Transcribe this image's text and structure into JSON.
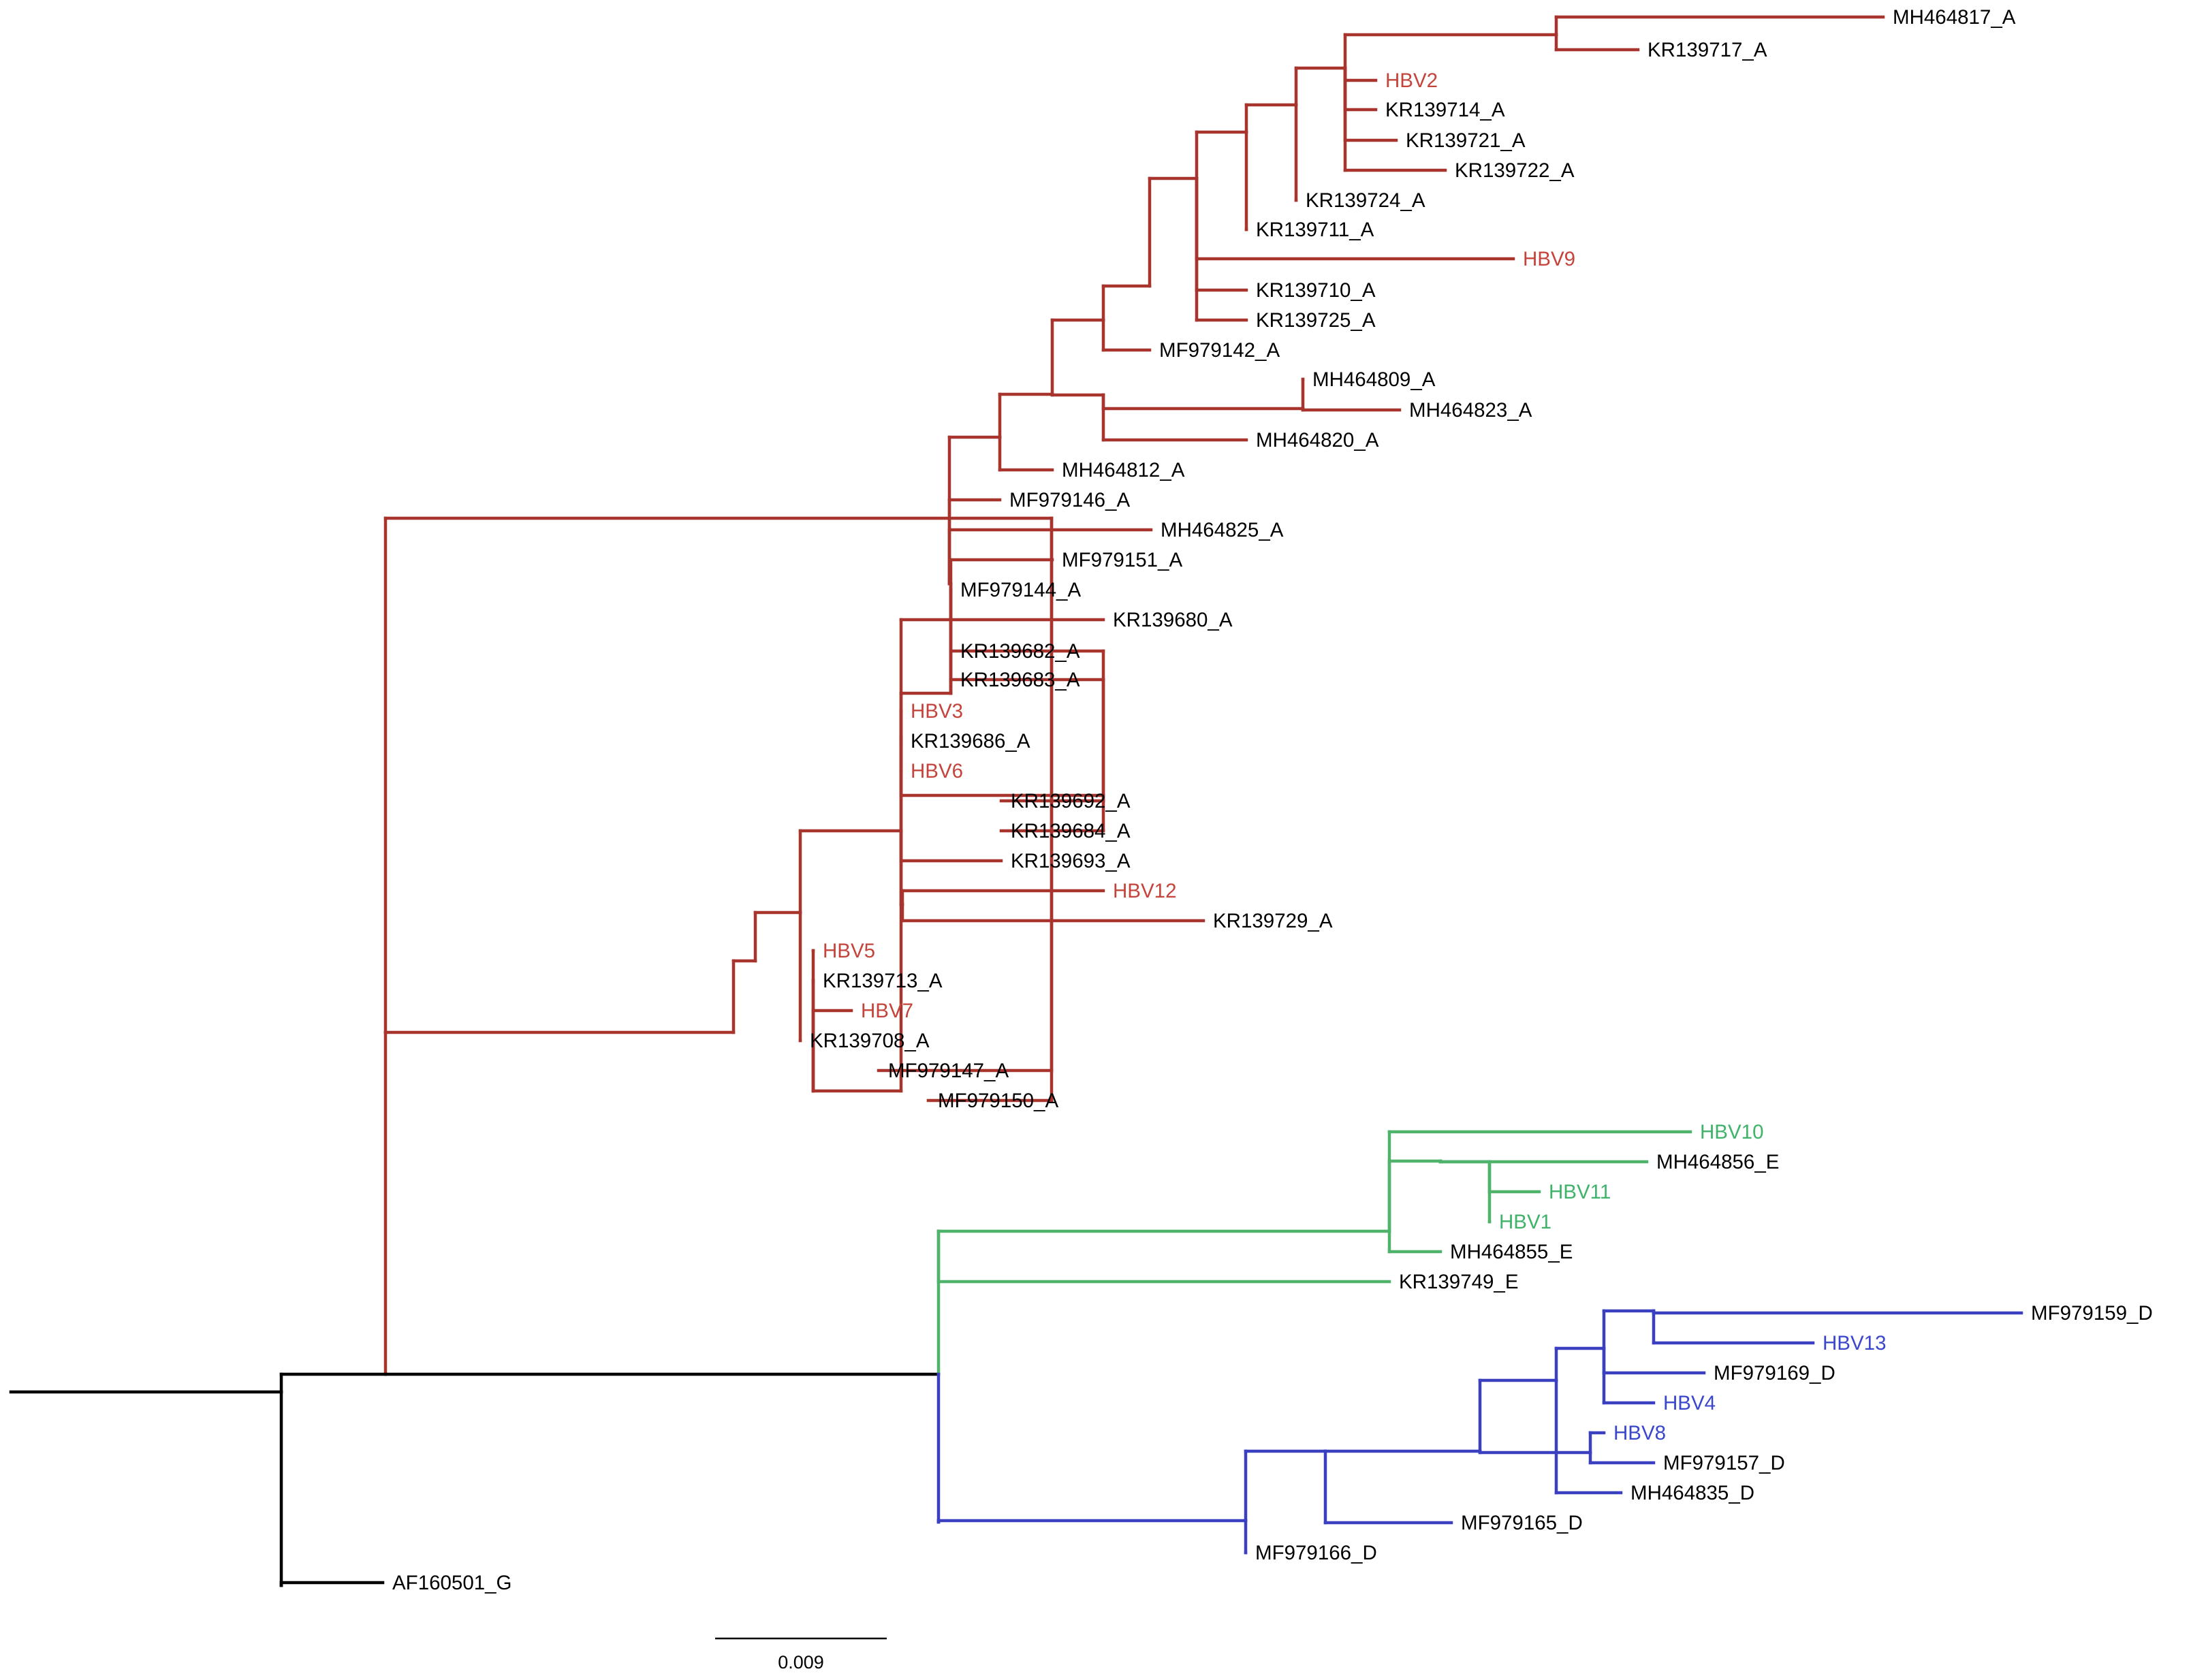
{
  "colors": {
    "cladeA": "#a8342e",
    "cladeE": "#4fb36c",
    "cladeD": "#3a40c0",
    "root": "#000000",
    "sampleA": "#c4443c",
    "sampleE": "#3fb36a",
    "sampleD": "#3a47cc",
    "reference": "#000000"
  },
  "tips": {
    "MH464817_A": {
      "text": "MH464817_A",
      "style": "reference"
    },
    "KR139717_A": {
      "text": "KR139717_A",
      "style": "reference"
    },
    "HBV2": {
      "text": "HBV2",
      "style": "sampleA"
    },
    "KR139714_A": {
      "text": "KR139714_A",
      "style": "reference"
    },
    "KR139721_A": {
      "text": "KR139721_A",
      "style": "reference"
    },
    "KR139722_A": {
      "text": "KR139722_A",
      "style": "reference"
    },
    "KR139724_A": {
      "text": "KR139724_A",
      "style": "reference"
    },
    "KR139711_A": {
      "text": "KR139711_A",
      "style": "reference"
    },
    "HBV9": {
      "text": "HBV9",
      "style": "sampleA"
    },
    "KR139710_A": {
      "text": "KR139710_A",
      "style": "reference"
    },
    "KR139725_A": {
      "text": "KR139725_A",
      "style": "reference"
    },
    "MF979142_A": {
      "text": "MF979142_A",
      "style": "reference"
    },
    "MH464809_A": {
      "text": "MH464809_A",
      "style": "reference"
    },
    "MH464823_A": {
      "text": "MH464823_A",
      "style": "reference"
    },
    "MH464820_A": {
      "text": "MH464820_A",
      "style": "reference"
    },
    "MH464812_A": {
      "text": "MH464812_A",
      "style": "reference"
    },
    "MF979146_A": {
      "text": "MF979146_A",
      "style": "reference"
    },
    "MH464825_A": {
      "text": "MH464825_A",
      "style": "reference"
    },
    "MF979151_A": {
      "text": "MF979151_A",
      "style": "reference"
    },
    "MF979144_A": {
      "text": "MF979144_A",
      "style": "reference"
    },
    "KR139680_A": {
      "text": "KR139680_A",
      "style": "reference"
    },
    "KR139682_A": {
      "text": "KR139682_A",
      "style": "reference"
    },
    "KR139683_A": {
      "text": "KR139683_A",
      "style": "reference"
    },
    "HBV3": {
      "text": "HBV3",
      "style": "sampleA"
    },
    "KR139686_A": {
      "text": "KR139686_A",
      "style": "reference"
    },
    "HBV6": {
      "text": "HBV6",
      "style": "sampleA"
    },
    "KR139692_A": {
      "text": "KR139692_A",
      "style": "reference"
    },
    "KR139684_A": {
      "text": "KR139684_A",
      "style": "reference"
    },
    "KR139693_A": {
      "text": "KR139693_A",
      "style": "reference"
    },
    "HBV12": {
      "text": "HBV12",
      "style": "sampleA"
    },
    "KR139729_A": {
      "text": "KR139729_A",
      "style": "reference"
    },
    "HBV5": {
      "text": "HBV5",
      "style": "sampleA"
    },
    "KR139713_A": {
      "text": "KR139713_A",
      "style": "reference"
    },
    "HBV7": {
      "text": "HBV7",
      "style": "sampleA"
    },
    "KR139708_A": {
      "text": "KR139708_A",
      "style": "reference"
    },
    "MF979147_A": {
      "text": "MF979147_A",
      "style": "reference"
    },
    "MF979150_A": {
      "text": "MF979150_A",
      "style": "reference"
    },
    "HBV10": {
      "text": "HBV10",
      "style": "sampleE"
    },
    "MH464856_E": {
      "text": "MH464856_E",
      "style": "reference"
    },
    "HBV11": {
      "text": "HBV11",
      "style": "sampleE"
    },
    "HBV1": {
      "text": "HBV1",
      "style": "sampleE"
    },
    "MH464855_E": {
      "text": "MH464855_E",
      "style": "reference"
    },
    "KR139749_E": {
      "text": "KR139749_E",
      "style": "reference"
    },
    "MF979159_D": {
      "text": "MF979159_D",
      "style": "reference"
    },
    "HBV13": {
      "text": "HBV13",
      "style": "sampleD"
    },
    "MF979169_D": {
      "text": "MF979169_D",
      "style": "reference"
    },
    "HBV4": {
      "text": "HBV4",
      "style": "sampleD"
    },
    "HBV8": {
      "text": "HBV8",
      "style": "sampleD"
    },
    "MF979157_D": {
      "text": "MF979157_D",
      "style": "reference"
    },
    "MH464835_D": {
      "text": "MH464835_D",
      "style": "reference"
    },
    "MF979165_D": {
      "text": "MF979165_D",
      "style": "reference"
    },
    "MF979166_D": {
      "text": "MF979166_D",
      "style": "reference"
    },
    "AF160501_G": {
      "text": "AF160501_G",
      "style": "reference"
    }
  },
  "scale_bar": {
    "label": "0.009",
    "length": 0.009
  }
}
